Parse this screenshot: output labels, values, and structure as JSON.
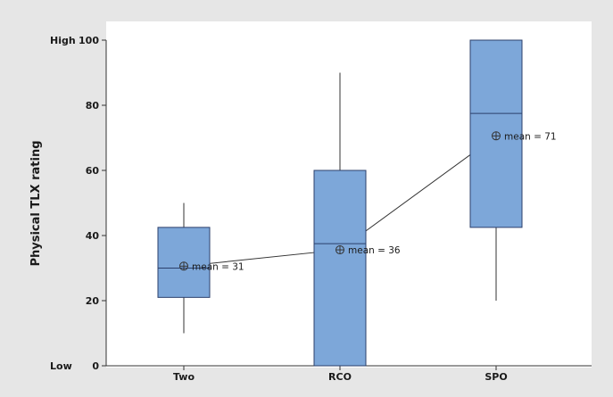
{
  "chart_data": {
    "type": "box",
    "ylabel": "Physical TLX rating",
    "xlabel": "",
    "ylim": [
      0,
      100
    ],
    "yticks": [
      0,
      20,
      40,
      60,
      80,
      100
    ],
    "y_extremes": {
      "low": "Low",
      "high": "High"
    },
    "categories": [
      "Two",
      "RCO",
      "SPO"
    ],
    "boxes": [
      {
        "category": "Two",
        "min": 10,
        "q1": 21,
        "median": 30,
        "q3": 42.5,
        "max": 50,
        "mean": 30.6
      },
      {
        "category": "RCO",
        "min": 0,
        "q1": 0,
        "median": 37.5,
        "q3": 60,
        "max": 90,
        "mean": 35.6
      },
      {
        "category": "SPO",
        "min": 20,
        "q1": 42.5,
        "median": 77.5,
        "q3": 100,
        "max": 100,
        "mean": 70.6
      }
    ],
    "mean_labels": [
      "mean = 31",
      "mean = 36",
      "mean = 71"
    ],
    "mean_line": true,
    "colors": {
      "box_fill": "#7da7d9",
      "box_stroke": "#2b3f6b",
      "whisker": "#333333",
      "plot_bg": "#ffffff",
      "outer_bg": "#e6e6e6"
    }
  }
}
